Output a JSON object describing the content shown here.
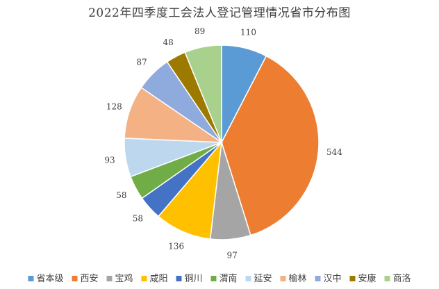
{
  "chart_data": {
    "type": "pie",
    "title": "2022年四季度工会法人登记管理情况省市分布图",
    "legend_position": "bottom",
    "start_angle_deg": 0,
    "direction": "clockwise",
    "slices": [
      {
        "name": "省本级",
        "value": 110,
        "color": "#5B9BD5"
      },
      {
        "name": "西安",
        "value": 544,
        "color": "#ED7D31"
      },
      {
        "name": "宝鸡",
        "value": 97,
        "color": "#A5A5A5"
      },
      {
        "name": "咸阳",
        "value": 136,
        "color": "#FFC000"
      },
      {
        "name": "铜川",
        "value": 58,
        "color": "#4472C4"
      },
      {
        "name": "渭南",
        "value": 58,
        "color": "#70AD47"
      },
      {
        "name": "延安",
        "value": 93,
        "color": "#BDD7EE"
      },
      {
        "name": "榆林",
        "value": 128,
        "color": "#F4B183"
      },
      {
        "name": "汉中",
        "value": 87,
        "color": "#8FAADC"
      },
      {
        "name": "安康",
        "value": 48,
        "color": "#9C7A00"
      },
      {
        "name": "商洛",
        "value": 89,
        "color": "#A9D18E"
      }
    ]
  }
}
